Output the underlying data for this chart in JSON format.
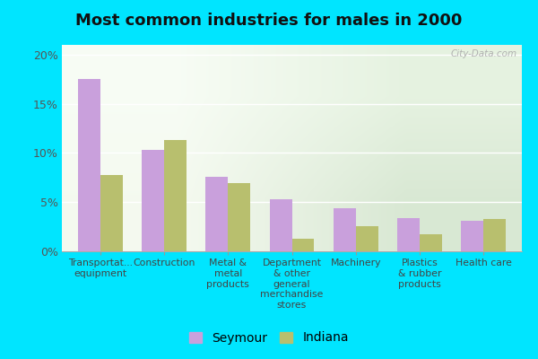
{
  "title": "Most common industries for males in 2000",
  "categories": [
    "Transportat...\nequipment",
    "Construction",
    "Metal &\nmetal\nproducts",
    "Department\n& other\ngeneral\nmerchandise\nstores",
    "Machinery",
    "Plastics\n& rubber\nproducts",
    "Health care"
  ],
  "seymour_values": [
    17.5,
    10.3,
    7.6,
    5.3,
    4.4,
    3.4,
    3.1
  ],
  "indiana_values": [
    7.8,
    11.3,
    6.9,
    1.3,
    2.6,
    1.7,
    3.3
  ],
  "seymour_color": "#c9a0dc",
  "indiana_color": "#b8bf6e",
  "background_outer": "#00e5ff",
  "ylim": [
    0,
    21
  ],
  "yticks": [
    0,
    5,
    10,
    15,
    20
  ],
  "ytick_labels": [
    "0%",
    "5%",
    "10%",
    "15%",
    "20%"
  ],
  "bar_width": 0.35,
  "legend_labels": [
    "Seymour",
    "Indiana"
  ],
  "watermark": "City-Data.com"
}
